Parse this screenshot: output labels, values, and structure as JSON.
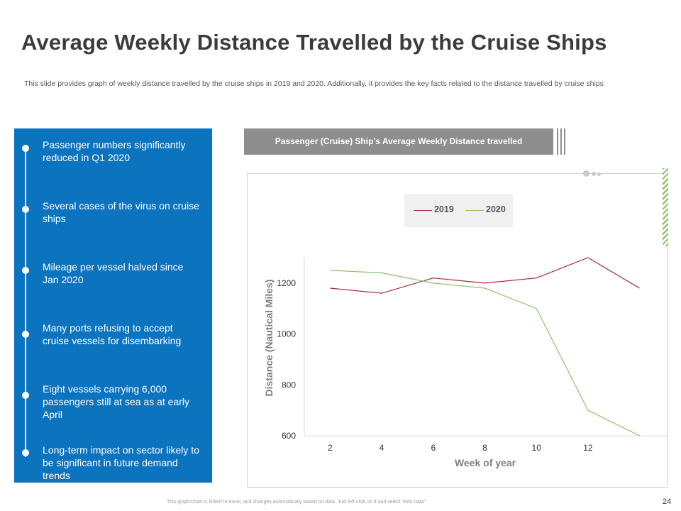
{
  "title": "Average Weekly Distance Travelled by the Cruise Ships",
  "subtitle": "This slide provides graph of weekly distance travelled by the cruise ships in 2019 and 2020. Additionally, it provides the key facts related to the distance travelled by cruise ships",
  "timeline": {
    "items": [
      "Passenger numbers significantly reduced in Q1 2020",
      "Several cases of the virus on cruise ships",
      "Mileage per vessel halved since Jan 2020",
      "Many ports refusing to accept cruise vessels for disembarking",
      "Eight vessels carrying 6,000 passengers still at sea as at early April",
      "Long-term impact on sector likely to be significant in future demand trends"
    ]
  },
  "chart_header": "Passenger (Cruise)  Ship’s Average Weekly Distance travelled",
  "legend": {
    "label_2019": "2019",
    "label_2020": "2020"
  },
  "colors": {
    "panel": "#0c73bf",
    "line_2019": "#a3283c",
    "line_2020": "#8cc265",
    "header": "#8e8e8e"
  },
  "chart_data": {
    "type": "line",
    "title": "Passenger (Cruise)  Ship’s Average Weekly Distance travelled",
    "xlabel": "Week of year",
    "ylabel": "Distance (Nautical Miles)",
    "x": [
      2,
      4,
      6,
      8,
      10,
      12,
      14
    ],
    "x_tick_labels": [
      "2",
      "4",
      "6",
      "8",
      "10",
      "12"
    ],
    "y_ticks": [
      600,
      800,
      1000,
      1200
    ],
    "xlim": [
      1,
      15
    ],
    "ylim": [
      600,
      1300
    ],
    "legend_position": "top",
    "series": [
      {
        "name": "2019",
        "values": [
          1180,
          1160,
          1220,
          1200,
          1220,
          1300,
          1180
        ]
      },
      {
        "name": "2020",
        "values": [
          1250,
          1240,
          1200,
          1180,
          1100,
          700,
          600
        ]
      }
    ]
  },
  "footer": "This graph/chart is linked to excel, and changes automatically based on data. Just left click on it and select “Edit Data”.",
  "page_number": "24"
}
